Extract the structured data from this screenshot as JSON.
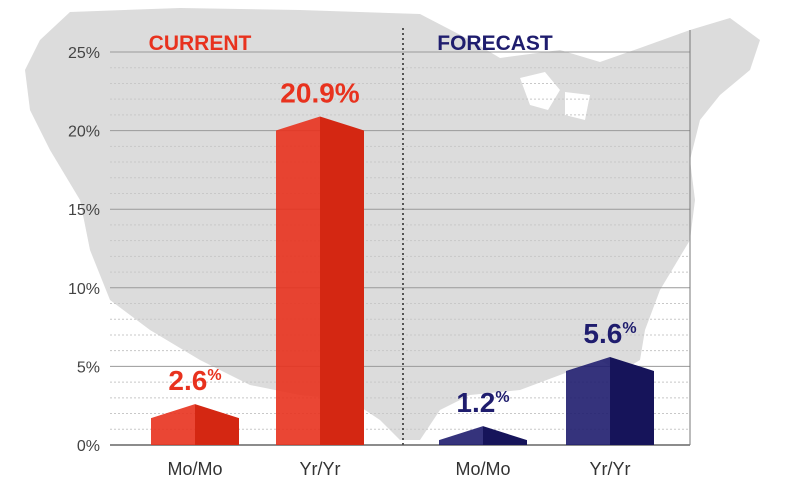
{
  "chart_data": {
    "type": "bar",
    "ylim": [
      0,
      25
    ],
    "yticks": [
      0,
      5,
      10,
      15,
      20,
      25
    ],
    "ytick_suffix": "%",
    "grid": true,
    "groups": [
      {
        "label": "CURRENT",
        "color": "#e8321e",
        "color_dark": "#d42712",
        "categories": [
          "Mo/Mo",
          "Yr/Yr"
        ],
        "values": [
          2.6,
          20.9
        ],
        "value_labels": [
          "2.6",
          "20.9%"
        ]
      },
      {
        "label": "FORECAST",
        "color": "#1f1d6e",
        "color_dark": "#16145a",
        "categories": [
          "Mo/Mo",
          "Yr/Yr"
        ],
        "values": [
          1.2,
          5.6
        ],
        "value_labels": [
          "1.2",
          "5.6"
        ]
      }
    ],
    "superscript_suffix": "%"
  },
  "colors": {
    "map": "#d9d9d9",
    "grid": "#9a9a9a",
    "minor_grid": "#c8c8c8",
    "divider": "#555555"
  }
}
